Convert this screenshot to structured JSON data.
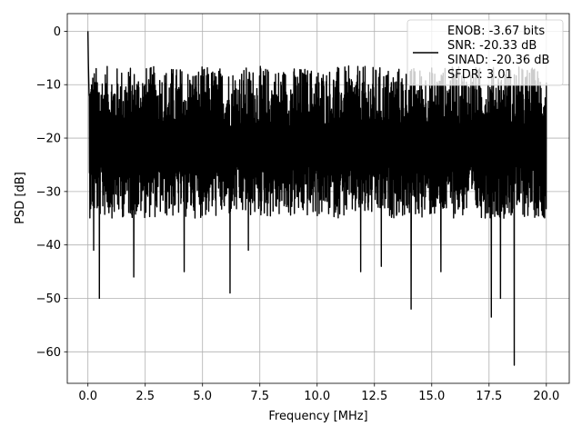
{
  "chart_data": {
    "type": "line",
    "xlabel": "Frequency [MHz]",
    "ylabel": "PSD [dB]",
    "xlim": [
      -0.9,
      21.0
    ],
    "ylim": [
      -65.9,
      3.3
    ],
    "x_ticks": [
      0.0,
      2.5,
      5.0,
      7.5,
      10.0,
      12.5,
      15.0,
      17.5,
      20.0
    ],
    "x_tick_labels": [
      "0.0",
      "2.5",
      "5.0",
      "7.5",
      "10.0",
      "12.5",
      "15.0",
      "17.5",
      "20.0"
    ],
    "y_ticks": [
      0,
      -10,
      -20,
      -30,
      -40,
      -50,
      -60
    ],
    "y_tick_labels": [
      "0",
      "−10",
      "−20",
      "−30",
      "−40",
      "−50",
      "−60"
    ],
    "grid": true,
    "legend_position": "top-right",
    "series": [
      {
        "name": "ENOB: -3.67 bits\nSNR: -20.33 dB\nSINAD: -20.36 dB\nSFDR: 3.01",
        "color": "#000000",
        "description": "dense noise spectrum, 0 to 20 MHz",
        "x_range": [
          0.0,
          20.0
        ],
        "peak": {
          "x": 0.0,
          "y": 0.0
        },
        "initial_drop": [
          [
            0.0,
            0.0
          ],
          [
            0.02,
            -6
          ],
          [
            0.05,
            -12
          ]
        ],
        "upper_envelope_range": [
          -18,
          -6.5
        ],
        "lower_envelope_range": [
          -35,
          -25
        ],
        "median_level": -21,
        "deep_dips": [
          {
            "x": 0.25,
            "y": -41
          },
          {
            "x": 0.5,
            "y": -50
          },
          {
            "x": 2.0,
            "y": -46
          },
          {
            "x": 4.2,
            "y": -45
          },
          {
            "x": 6.2,
            "y": -49
          },
          {
            "x": 7.0,
            "y": -41
          },
          {
            "x": 11.9,
            "y": -45
          },
          {
            "x": 12.8,
            "y": -44
          },
          {
            "x": 14.1,
            "y": -52
          },
          {
            "x": 15.4,
            "y": -45
          },
          {
            "x": 17.6,
            "y": -53.5
          },
          {
            "x": 18.0,
            "y": -50
          },
          {
            "x": 18.6,
            "y": -62.5
          }
        ]
      }
    ]
  }
}
